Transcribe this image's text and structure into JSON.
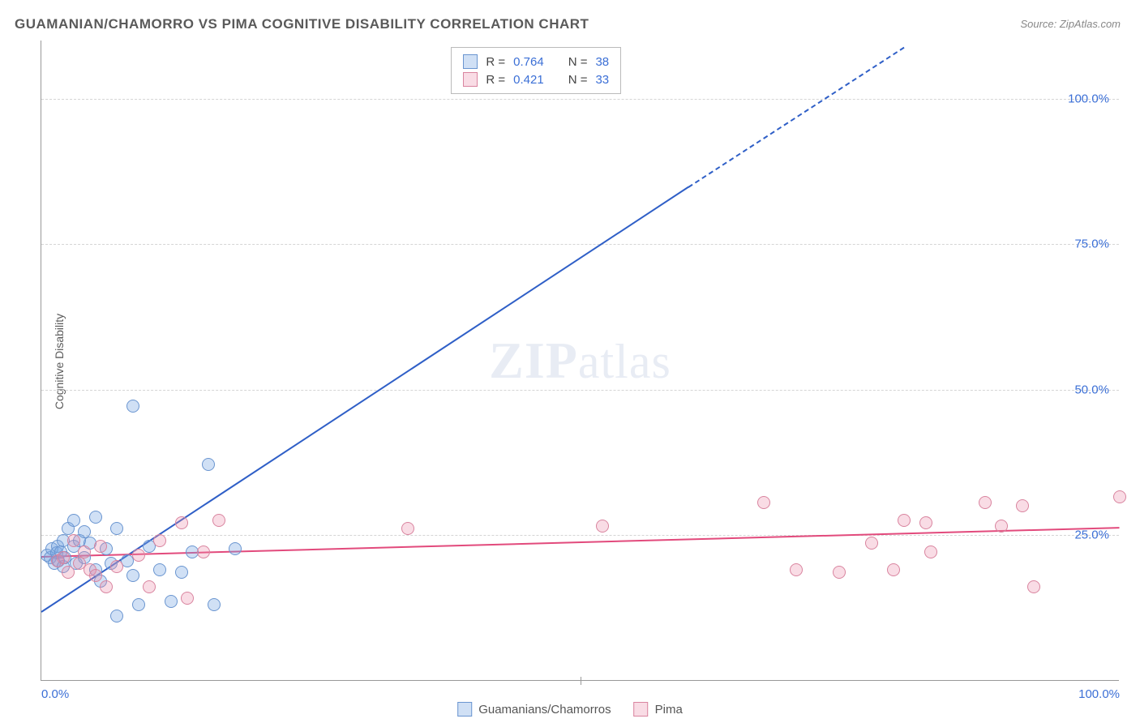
{
  "title": "GUAMANIAN/CHAMORRO VS PIMA COGNITIVE DISABILITY CORRELATION CHART",
  "source": "Source: ZipAtlas.com",
  "ylabel": "Cognitive Disability",
  "watermark_a": "ZIP",
  "watermark_b": "atlas",
  "chart": {
    "type": "scatter-with-regression",
    "xlim": [
      0,
      100
    ],
    "ylim": [
      0,
      110
    ],
    "yticks": [
      {
        "v": 25,
        "label": "25.0%"
      },
      {
        "v": 50,
        "label": "50.0%"
      },
      {
        "v": 75,
        "label": "75.0%"
      },
      {
        "v": 100,
        "label": "100.0%"
      }
    ],
    "xticks": [
      {
        "v": 0,
        "label": "0.0%"
      },
      {
        "v": 50,
        "label": ""
      },
      {
        "v": 100,
        "label": "100.0%"
      }
    ],
    "background_color": "#ffffff",
    "grid_color": "#d5d5d5",
    "axis_color": "#999999",
    "tick_label_color": "#3b6fd6",
    "marker_radius": 8,
    "marker_border_width": 1.5,
    "series": [
      {
        "name": "Guamanians/Chamorros",
        "fill": "rgba(120,165,225,0.35)",
        "stroke": "#6a95d0",
        "trend_color": "#2f5fc7",
        "trend_solid": {
          "x1": 0,
          "y1": 12,
          "x2": 60,
          "y2": 85
        },
        "trend_dashed": {
          "x1": 60,
          "y1": 85,
          "x2": 80,
          "y2": 109
        },
        "points": [
          [
            0.5,
            21.5
          ],
          [
            0.8,
            21.0
          ],
          [
            1.0,
            22.5
          ],
          [
            1.2,
            20.0
          ],
          [
            1.4,
            21.8
          ],
          [
            1.5,
            23.0
          ],
          [
            1.6,
            20.5
          ],
          [
            1.8,
            22.0
          ],
          [
            2.0,
            24.0
          ],
          [
            2.0,
            19.5
          ],
          [
            2.2,
            21.0
          ],
          [
            2.5,
            26.0
          ],
          [
            3.0,
            27.5
          ],
          [
            3.0,
            23.0
          ],
          [
            3.2,
            20.0
          ],
          [
            3.5,
            24.0
          ],
          [
            4.0,
            25.5
          ],
          [
            4.0,
            21.0
          ],
          [
            4.5,
            23.5
          ],
          [
            5.0,
            28.0
          ],
          [
            5.0,
            19.0
          ],
          [
            5.5,
            17.0
          ],
          [
            6.0,
            22.5
          ],
          [
            6.5,
            20.0
          ],
          [
            7.0,
            26.0
          ],
          [
            7.0,
            11.0
          ],
          [
            8.0,
            20.5
          ],
          [
            8.5,
            18.0
          ],
          [
            8.5,
            47.0
          ],
          [
            9.0,
            13.0
          ],
          [
            10.0,
            23.0
          ],
          [
            11.0,
            19.0
          ],
          [
            12.0,
            13.5
          ],
          [
            13.0,
            18.5
          ],
          [
            14.0,
            22.0
          ],
          [
            15.5,
            37.0
          ],
          [
            16.0,
            13.0
          ],
          [
            18.0,
            22.5
          ]
        ]
      },
      {
        "name": "Pima",
        "fill": "rgba(235,140,170,0.30)",
        "stroke": "#d9849f",
        "trend_color": "#e24a7c",
        "trend_solid": {
          "x1": 0,
          "y1": 21.5,
          "x2": 100,
          "y2": 26.5
        },
        "points": [
          [
            1.5,
            20.5
          ],
          [
            2.0,
            21.0
          ],
          [
            2.5,
            18.5
          ],
          [
            3.0,
            24.0
          ],
          [
            3.5,
            20.0
          ],
          [
            4.0,
            22.0
          ],
          [
            4.5,
            19.0
          ],
          [
            5.0,
            18.0
          ],
          [
            5.5,
            23.0
          ],
          [
            6.0,
            16.0
          ],
          [
            7.0,
            19.5
          ],
          [
            9.0,
            21.5
          ],
          [
            10.0,
            16.0
          ],
          [
            11.0,
            24.0
          ],
          [
            13.0,
            27.0
          ],
          [
            13.5,
            14.0
          ],
          [
            15.0,
            22.0
          ],
          [
            16.5,
            27.5
          ],
          [
            34.0,
            26.0
          ],
          [
            52.0,
            26.5
          ],
          [
            67.0,
            30.5
          ],
          [
            70.0,
            19.0
          ],
          [
            74.0,
            18.5
          ],
          [
            77.0,
            23.5
          ],
          [
            79.0,
            19.0
          ],
          [
            80.0,
            27.5
          ],
          [
            82.0,
            27.0
          ],
          [
            82.5,
            22.0
          ],
          [
            87.5,
            30.5
          ],
          [
            89.0,
            26.5
          ],
          [
            91.0,
            30.0
          ],
          [
            92.0,
            16.0
          ],
          [
            100.0,
            31.5
          ]
        ]
      }
    ]
  },
  "stats": {
    "rows": [
      {
        "swatch_fill": "rgba(120,165,225,0.35)",
        "swatch_stroke": "#6a95d0",
        "r_label": "R =",
        "r_val": "0.764",
        "n_label": "N =",
        "n_val": "38"
      },
      {
        "swatch_fill": "rgba(235,140,170,0.30)",
        "swatch_stroke": "#d9849f",
        "r_label": "R =",
        "r_val": "0.421",
        "n_label": "N =",
        "n_val": "33"
      }
    ]
  },
  "legend": [
    {
      "swatch_fill": "rgba(120,165,225,0.35)",
      "swatch_stroke": "#6a95d0",
      "label": "Guamanians/Chamorros"
    },
    {
      "swatch_fill": "rgba(235,140,170,0.30)",
      "swatch_stroke": "#d9849f",
      "label": "Pima"
    }
  ]
}
